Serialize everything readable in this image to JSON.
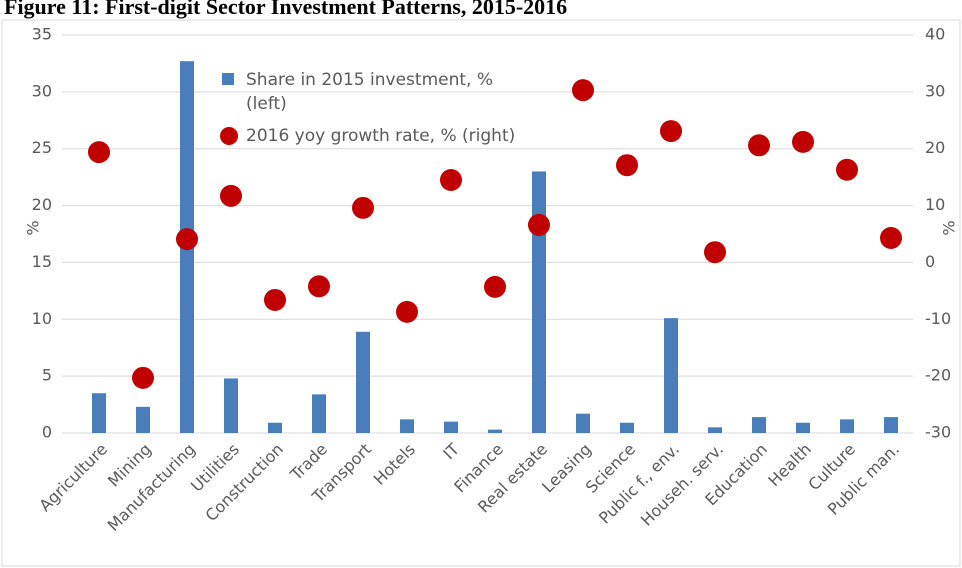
{
  "chart_data": {
    "type": "bar_dot",
    "title": "Figure 11: First-digit Sector Investment Patterns, 2015-2016",
    "ylabel": "%",
    "y2label": "%",
    "categories": [
      "Agriculture",
      "Mining",
      "Manufacturing",
      "Utilities",
      "Construction",
      "Trade",
      "Transport",
      "Hotels",
      "IT",
      "Finance",
      "Real estate",
      "Leasing",
      "Science",
      "Public f., env.",
      "Househ. serv.",
      "Education",
      "Health",
      "Culture",
      "Public man."
    ],
    "series": [
      {
        "name": "Share in 2015 investment, % (left)",
        "color": "#4a7ebb",
        "mark": "bar",
        "values": [
          3.5,
          2.3,
          32.7,
          4.8,
          0.9,
          3.4,
          8.9,
          1.2,
          1.0,
          0.3,
          23.0,
          1.7,
          0.9,
          10.1,
          0.5,
          1.4,
          0.9,
          1.2,
          1.4
        ]
      },
      {
        "name": "2016 yoy growth rate, % (right)",
        "color": "#c00000",
        "mark": "dot",
        "axis": "y2",
        "values": [
          19.4,
          -20.3,
          4.1,
          11.7,
          -6.6,
          -4.2,
          9.6,
          -8.7,
          14.5,
          -4.3,
          6.6,
          30.3,
          17.1,
          23.1,
          1.8,
          20.6,
          21.2,
          16.3,
          4.3
        ]
      }
    ],
    "ylim": [
      0,
      35
    ],
    "yticks": [
      0,
      5,
      10,
      15,
      20,
      25,
      30,
      35
    ],
    "y2lim": [
      -30,
      40
    ],
    "y2ticks": [
      -30,
      -20,
      -10,
      0,
      10,
      20,
      30,
      40
    ],
    "grid": true
  }
}
